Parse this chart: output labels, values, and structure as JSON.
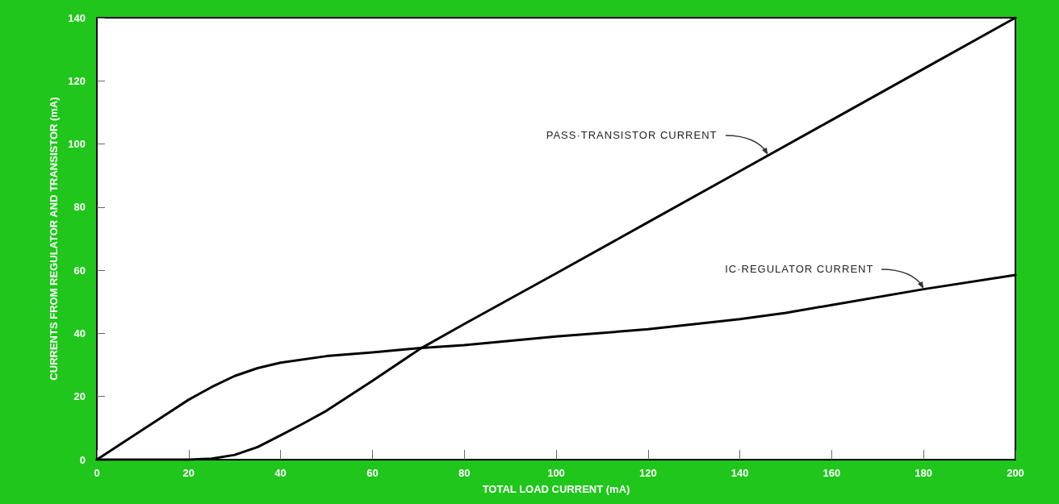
{
  "chart_data": {
    "type": "line",
    "xlabel": "TOTAL LOAD CURRENT (mA)",
    "ylabel": "CURRENTS FROM REGULATOR AND TRANSISTOR (mA)",
    "series": [
      {
        "color": "#000000",
        "x": [
          0,
          10,
          20,
          25,
          30,
          35,
          40,
          50,
          60,
          70,
          80,
          100,
          120,
          140,
          150,
          160,
          180,
          200
        ],
        "values": [
          0,
          9.5,
          19,
          23,
          26.5,
          29,
          30.7,
          32.8,
          34,
          35.3,
          36.3,
          39,
          41.3,
          44.5,
          46.5,
          49,
          54,
          58.5
        ]
      },
      {
        "color": "#000000",
        "x": [
          0,
          20,
          25,
          30,
          35,
          40,
          45,
          50,
          60,
          70.6,
          80,
          100,
          120,
          140,
          160,
          180,
          200
        ],
        "values": [
          0,
          0,
          0.3,
          1.5,
          4,
          7.7,
          11.5,
          15.5,
          25,
          35.3,
          43,
          59,
          75.2,
          91.4,
          107.6,
          123.8,
          140
        ]
      }
    ],
    "xlim": [
      0,
      200
    ],
    "xticks": [
      0,
      20,
      40,
      60,
      80,
      100,
      120,
      140,
      160,
      180,
      200
    ],
    "ylim": [
      0,
      140
    ],
    "yticks": [
      0,
      20,
      40,
      60,
      80,
      100,
      120,
      140
    ],
    "marker": "none",
    "line_style": "solid",
    "annotations": [
      {
        "text": "PASS·TRANSISTOR CURRENT",
        "x": 146,
        "y": 96.3
      },
      {
        "text": "IC·REGULATOR CURRENT",
        "x": 180,
        "y": 54
      }
    ]
  }
}
